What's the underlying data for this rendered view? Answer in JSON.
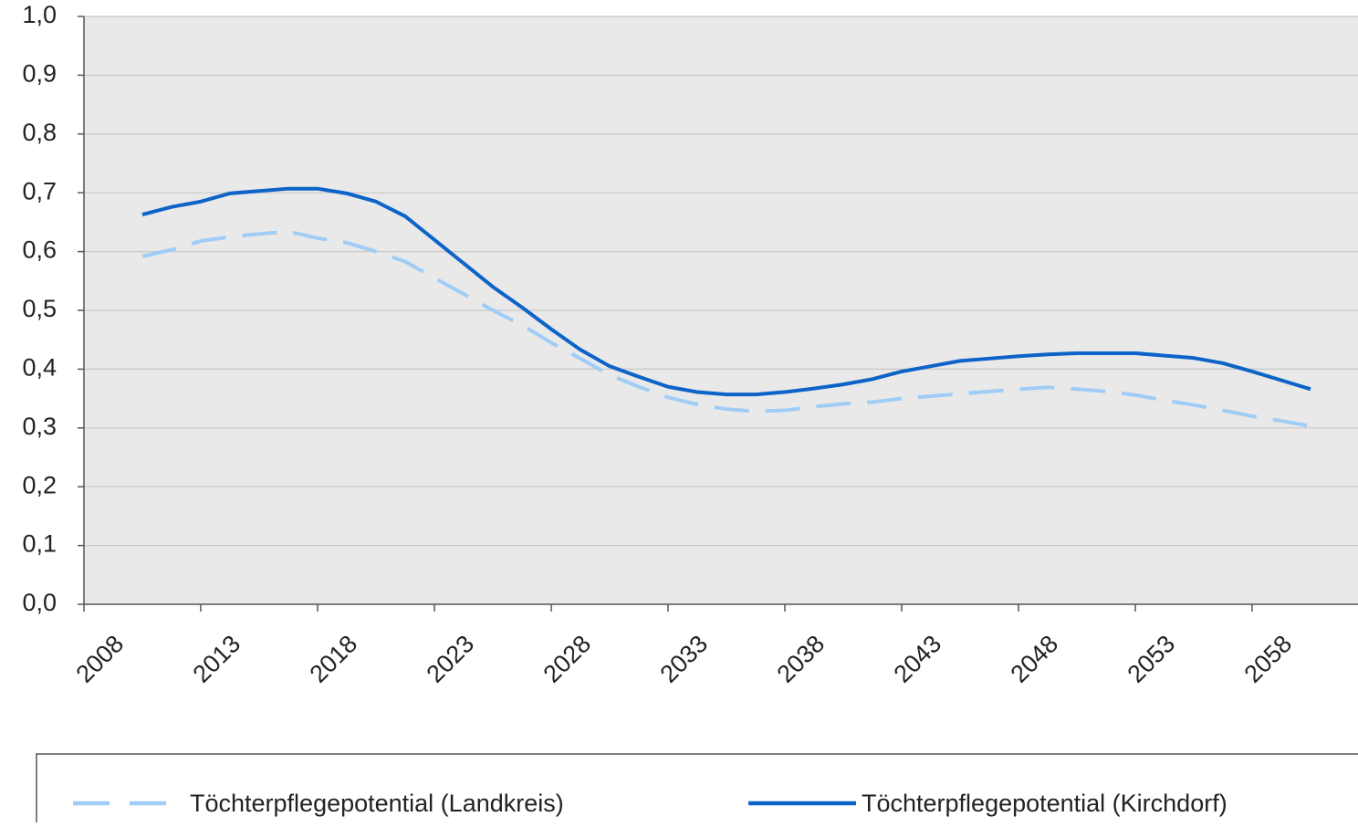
{
  "chart_data": {
    "type": "line",
    "categories": [
      "2008",
      null,
      null,
      null,
      "2013",
      null,
      null,
      null,
      "2018",
      null,
      null,
      null,
      "2023",
      null,
      null,
      null,
      "2028",
      null,
      null,
      null,
      "2033",
      null,
      null,
      null,
      "2038",
      null,
      null,
      null,
      "2043",
      null,
      null,
      null,
      "2048",
      null,
      null,
      null,
      "2053",
      null,
      null,
      null,
      "2058",
      null,
      null,
      null
    ],
    "series": [
      {
        "name": "Töchterpflegepotential (Landkreis)",
        "color": "#9fcdf5",
        "dash": true,
        "values": [
          null,
          null,
          0.592,
          0.603,
          0.618,
          0.625,
          0.63,
          0.634,
          0.623,
          0.615,
          0.6,
          0.583,
          0.555,
          0.528,
          0.5,
          0.475,
          0.445,
          0.418,
          0.39,
          0.37,
          0.352,
          0.34,
          0.332,
          0.328,
          0.33,
          0.336,
          0.341,
          0.344,
          0.35,
          0.354,
          0.358,
          0.362,
          0.366,
          0.369,
          0.366,
          0.362,
          0.356,
          0.347,
          0.339,
          0.33,
          0.32,
          0.312,
          0.303,
          null
        ]
      },
      {
        "name": "Töchterpflegepotential (Kirchdorf)",
        "color": "#0d63c8",
        "dash": false,
        "values": [
          null,
          null,
          0.663,
          0.676,
          0.685,
          0.699,
          0.703,
          0.707,
          0.707,
          0.699,
          0.685,
          0.66,
          0.62,
          0.58,
          0.54,
          0.505,
          0.468,
          0.433,
          0.405,
          0.387,
          0.37,
          0.361,
          0.357,
          0.357,
          0.361,
          0.367,
          0.374,
          0.383,
          0.396,
          0.405,
          0.414,
          0.418,
          0.422,
          0.425,
          0.427,
          0.427,
          0.427,
          0.423,
          0.419,
          0.41,
          0.396,
          0.381,
          0.366,
          null
        ]
      }
    ],
    "ylim": [
      0,
      1
    ],
    "yticks": [
      {
        "value": 0,
        "label": "0,0"
      },
      {
        "value": 0.1,
        "label": "0,1"
      },
      {
        "value": 0.2,
        "label": "0,2"
      },
      {
        "value": 0.3,
        "label": "0,3"
      },
      {
        "value": 0.4,
        "label": "0,4"
      },
      {
        "value": 0.5,
        "label": "0,5"
      },
      {
        "value": 0.6,
        "label": "0,6"
      },
      {
        "value": 0.7,
        "label": "0,7"
      },
      {
        "value": 0.8,
        "label": "0,8"
      },
      {
        "value": 0.9,
        "label": "0,9"
      },
      {
        "value": 1,
        "label": "1,0"
      }
    ],
    "grid": true,
    "legend": "bottom"
  }
}
